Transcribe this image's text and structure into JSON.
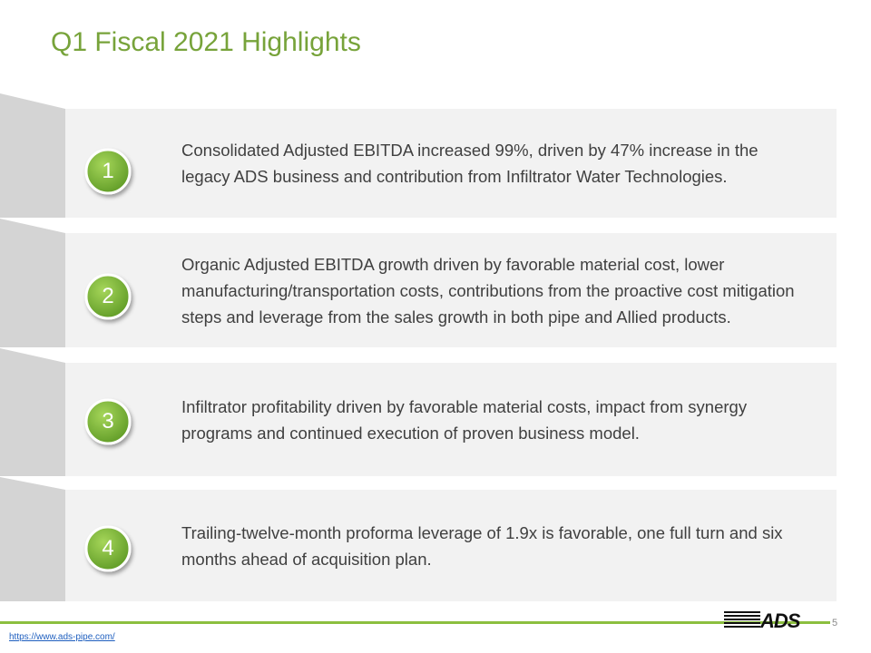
{
  "header": {
    "title": "Q1 Fiscal 2021 Highlights"
  },
  "items": [
    {
      "number": "1",
      "text": "Consolidated Adjusted EBITDA increased 99%, driven by 47% increase in the legacy ADS business and contribution from Infiltrator Water Technologies."
    },
    {
      "number": "2",
      "text": "Organic Adjusted EBITDA growth driven by favorable material cost, lower manufacturing/transportation costs, contributions from the proactive cost mitigation steps and leverage from the sales growth in both pipe and Allied products."
    },
    {
      "number": "3",
      "text": "Infiltrator profitability driven by favorable material costs, impact from synergy programs and continued execution of proven business model."
    },
    {
      "number": "4",
      "text": "Trailing-twelve-month proforma leverage of 1.9x is favorable, one full turn and six months ahead of acquisition plan."
    }
  ],
  "footer": {
    "link": "https://www.ads-pipe.com/",
    "page_number": "5",
    "logo": "ADS"
  }
}
